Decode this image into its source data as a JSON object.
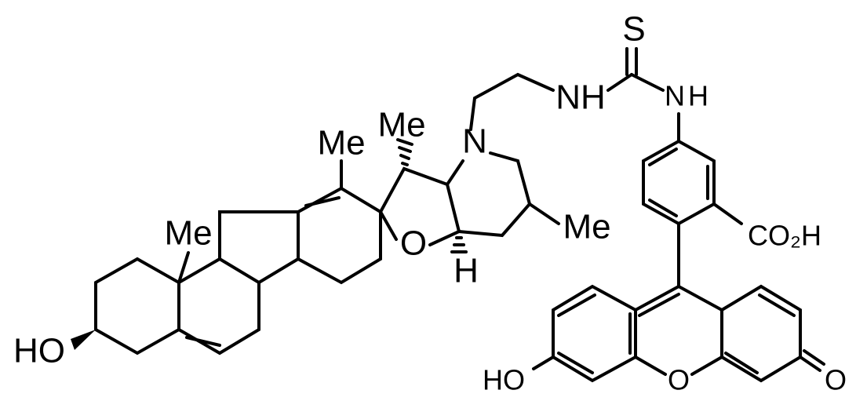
{
  "molecule": {
    "labels": {
      "hydroxyl_steroid": "HO",
      "methyl_c10": "Me",
      "methyl_alkene": "Me",
      "methyl_ring_e": "Me",
      "nitrogen_ring": "N",
      "oxygen_ring": "O",
      "hydrogen_ring": "H",
      "methyl_piperidine": "Me",
      "amine_left": "NH",
      "sulfur": "S",
      "amine_right_n": "N",
      "amine_right_h": "H",
      "carboxyl": "CO₂H",
      "xanthene_oxygen": "O",
      "hydroxyl_xanthene": "HO",
      "ketone_oxygen": "O"
    }
  }
}
